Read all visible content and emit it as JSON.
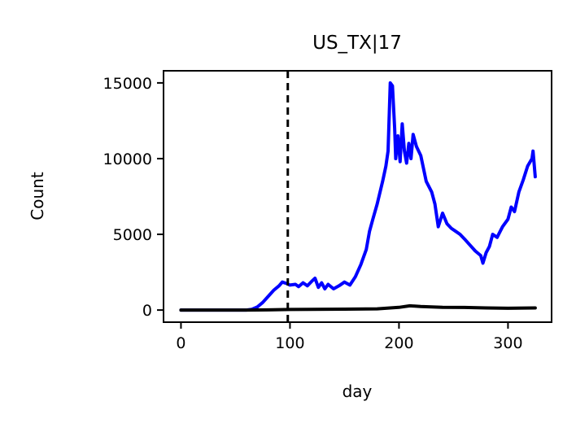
{
  "chart_data": {
    "type": "line",
    "title": "US_TX|17",
    "xlabel": "day",
    "ylabel": "Count",
    "xlim": [
      -16,
      340
    ],
    "ylim": [
      -800,
      15800
    ],
    "x_ticks": [
      0,
      100,
      200,
      300
    ],
    "y_ticks": [
      0,
      5000,
      10000,
      15000
    ],
    "x_tick_labels": [
      "0",
      "100",
      "200",
      "300"
    ],
    "y_tick_labels": [
      "0",
      "5000",
      "10000",
      "15000"
    ],
    "grid": false,
    "legend": "none",
    "vertical_marker": {
      "x": 98,
      "style": "dashed",
      "color": "#000000"
    },
    "series": [
      {
        "color": "#0000ff",
        "points": [
          [
            0,
            0
          ],
          [
            60,
            0
          ],
          [
            65,
            50
          ],
          [
            70,
            200
          ],
          [
            75,
            500
          ],
          [
            80,
            900
          ],
          [
            85,
            1300
          ],
          [
            90,
            1600
          ],
          [
            93,
            1850
          ],
          [
            97,
            1750
          ],
          [
            100,
            1650
          ],
          [
            105,
            1700
          ],
          [
            108,
            1550
          ],
          [
            112,
            1800
          ],
          [
            116,
            1600
          ],
          [
            120,
            1900
          ],
          [
            123,
            2100
          ],
          [
            126,
            1500
          ],
          [
            129,
            1800
          ],
          [
            132,
            1400
          ],
          [
            135,
            1700
          ],
          [
            140,
            1400
          ],
          [
            145,
            1600
          ],
          [
            150,
            1850
          ],
          [
            155,
            1650
          ],
          [
            160,
            2200
          ],
          [
            165,
            3000
          ],
          [
            170,
            4000
          ],
          [
            173,
            5200
          ],
          [
            176,
            6000
          ],
          [
            180,
            7000
          ],
          [
            185,
            8500
          ],
          [
            188,
            9500
          ],
          [
            190,
            10500
          ],
          [
            192,
            15000
          ],
          [
            194,
            14800
          ],
          [
            196,
            12000
          ],
          [
            197,
            10000
          ],
          [
            199,
            11500
          ],
          [
            201,
            9800
          ],
          [
            203,
            12300
          ],
          [
            205,
            10500
          ],
          [
            207,
            9700
          ],
          [
            209,
            11000
          ],
          [
            211,
            10000
          ],
          [
            213,
            11600
          ],
          [
            216,
            10800
          ],
          [
            220,
            10200
          ],
          [
            225,
            8500
          ],
          [
            230,
            7800
          ],
          [
            233,
            7000
          ],
          [
            236,
            5500
          ],
          [
            240,
            6400
          ],
          [
            244,
            5700
          ],
          [
            248,
            5400
          ],
          [
            252,
            5200
          ],
          [
            256,
            5000
          ],
          [
            260,
            4700
          ],
          [
            265,
            4300
          ],
          [
            270,
            3900
          ],
          [
            275,
            3600
          ],
          [
            277,
            3100
          ],
          [
            280,
            3800
          ],
          [
            283,
            4200
          ],
          [
            286,
            5000
          ],
          [
            290,
            4800
          ],
          [
            295,
            5500
          ],
          [
            300,
            6000
          ],
          [
            303,
            6800
          ],
          [
            306,
            6500
          ],
          [
            310,
            7800
          ],
          [
            314,
            8600
          ],
          [
            318,
            9500
          ],
          [
            322,
            10000
          ],
          [
            323,
            10500
          ],
          [
            325,
            8800
          ]
        ]
      },
      {
        "color": "#000000",
        "points": [
          [
            0,
            0
          ],
          [
            60,
            0
          ],
          [
            80,
            10
          ],
          [
            100,
            40
          ],
          [
            150,
            60
          ],
          [
            180,
            80
          ],
          [
            200,
            180
          ],
          [
            210,
            280
          ],
          [
            220,
            230
          ],
          [
            240,
            180
          ],
          [
            260,
            170
          ],
          [
            280,
            140
          ],
          [
            300,
            120
          ],
          [
            325,
            140
          ]
        ]
      }
    ]
  }
}
